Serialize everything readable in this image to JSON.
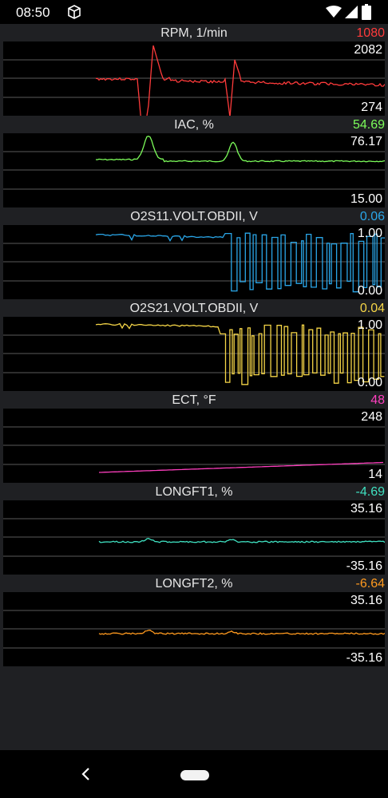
{
  "status_bar": {
    "time": "08:50",
    "icons": [
      "box-icon",
      "wifi-icon",
      "signal-icon",
      "battery-icon"
    ]
  },
  "panels": [
    {
      "label": "RPM, 1/min",
      "current": "1080",
      "max": "2082",
      "min": "274",
      "color": "#ff3b3b"
    },
    {
      "label": "IAC, %",
      "current": "54.69",
      "max": "76.17",
      "min": "15.00",
      "color": "#7CFC5A"
    },
    {
      "label": "O2S11.VOLT.OBDII, V",
      "current": "0.06",
      "max": "1.00",
      "min": "0.00",
      "color": "#2aa6e8"
    },
    {
      "label": "O2S21.VOLT.OBDII, V",
      "current": "0.04",
      "max": "1.00",
      "min": "0.00",
      "color": "#f5d547"
    },
    {
      "label": "ECT, °F",
      "current": "48",
      "max": "248",
      "min": "14",
      "color": "#ff3fbf"
    },
    {
      "label": "LONGFT1, %",
      "current": "-4.69",
      "max": "35.16",
      "min": "-35.16",
      "color": "#3fe0c0"
    },
    {
      "label": "LONGFT2, %",
      "current": "-6.64",
      "max": "35.16",
      "min": "-35.16",
      "color": "#ff9a1f"
    }
  ],
  "nav": {
    "back_icon": "back-chevron-icon",
    "home": "home-pill"
  }
}
